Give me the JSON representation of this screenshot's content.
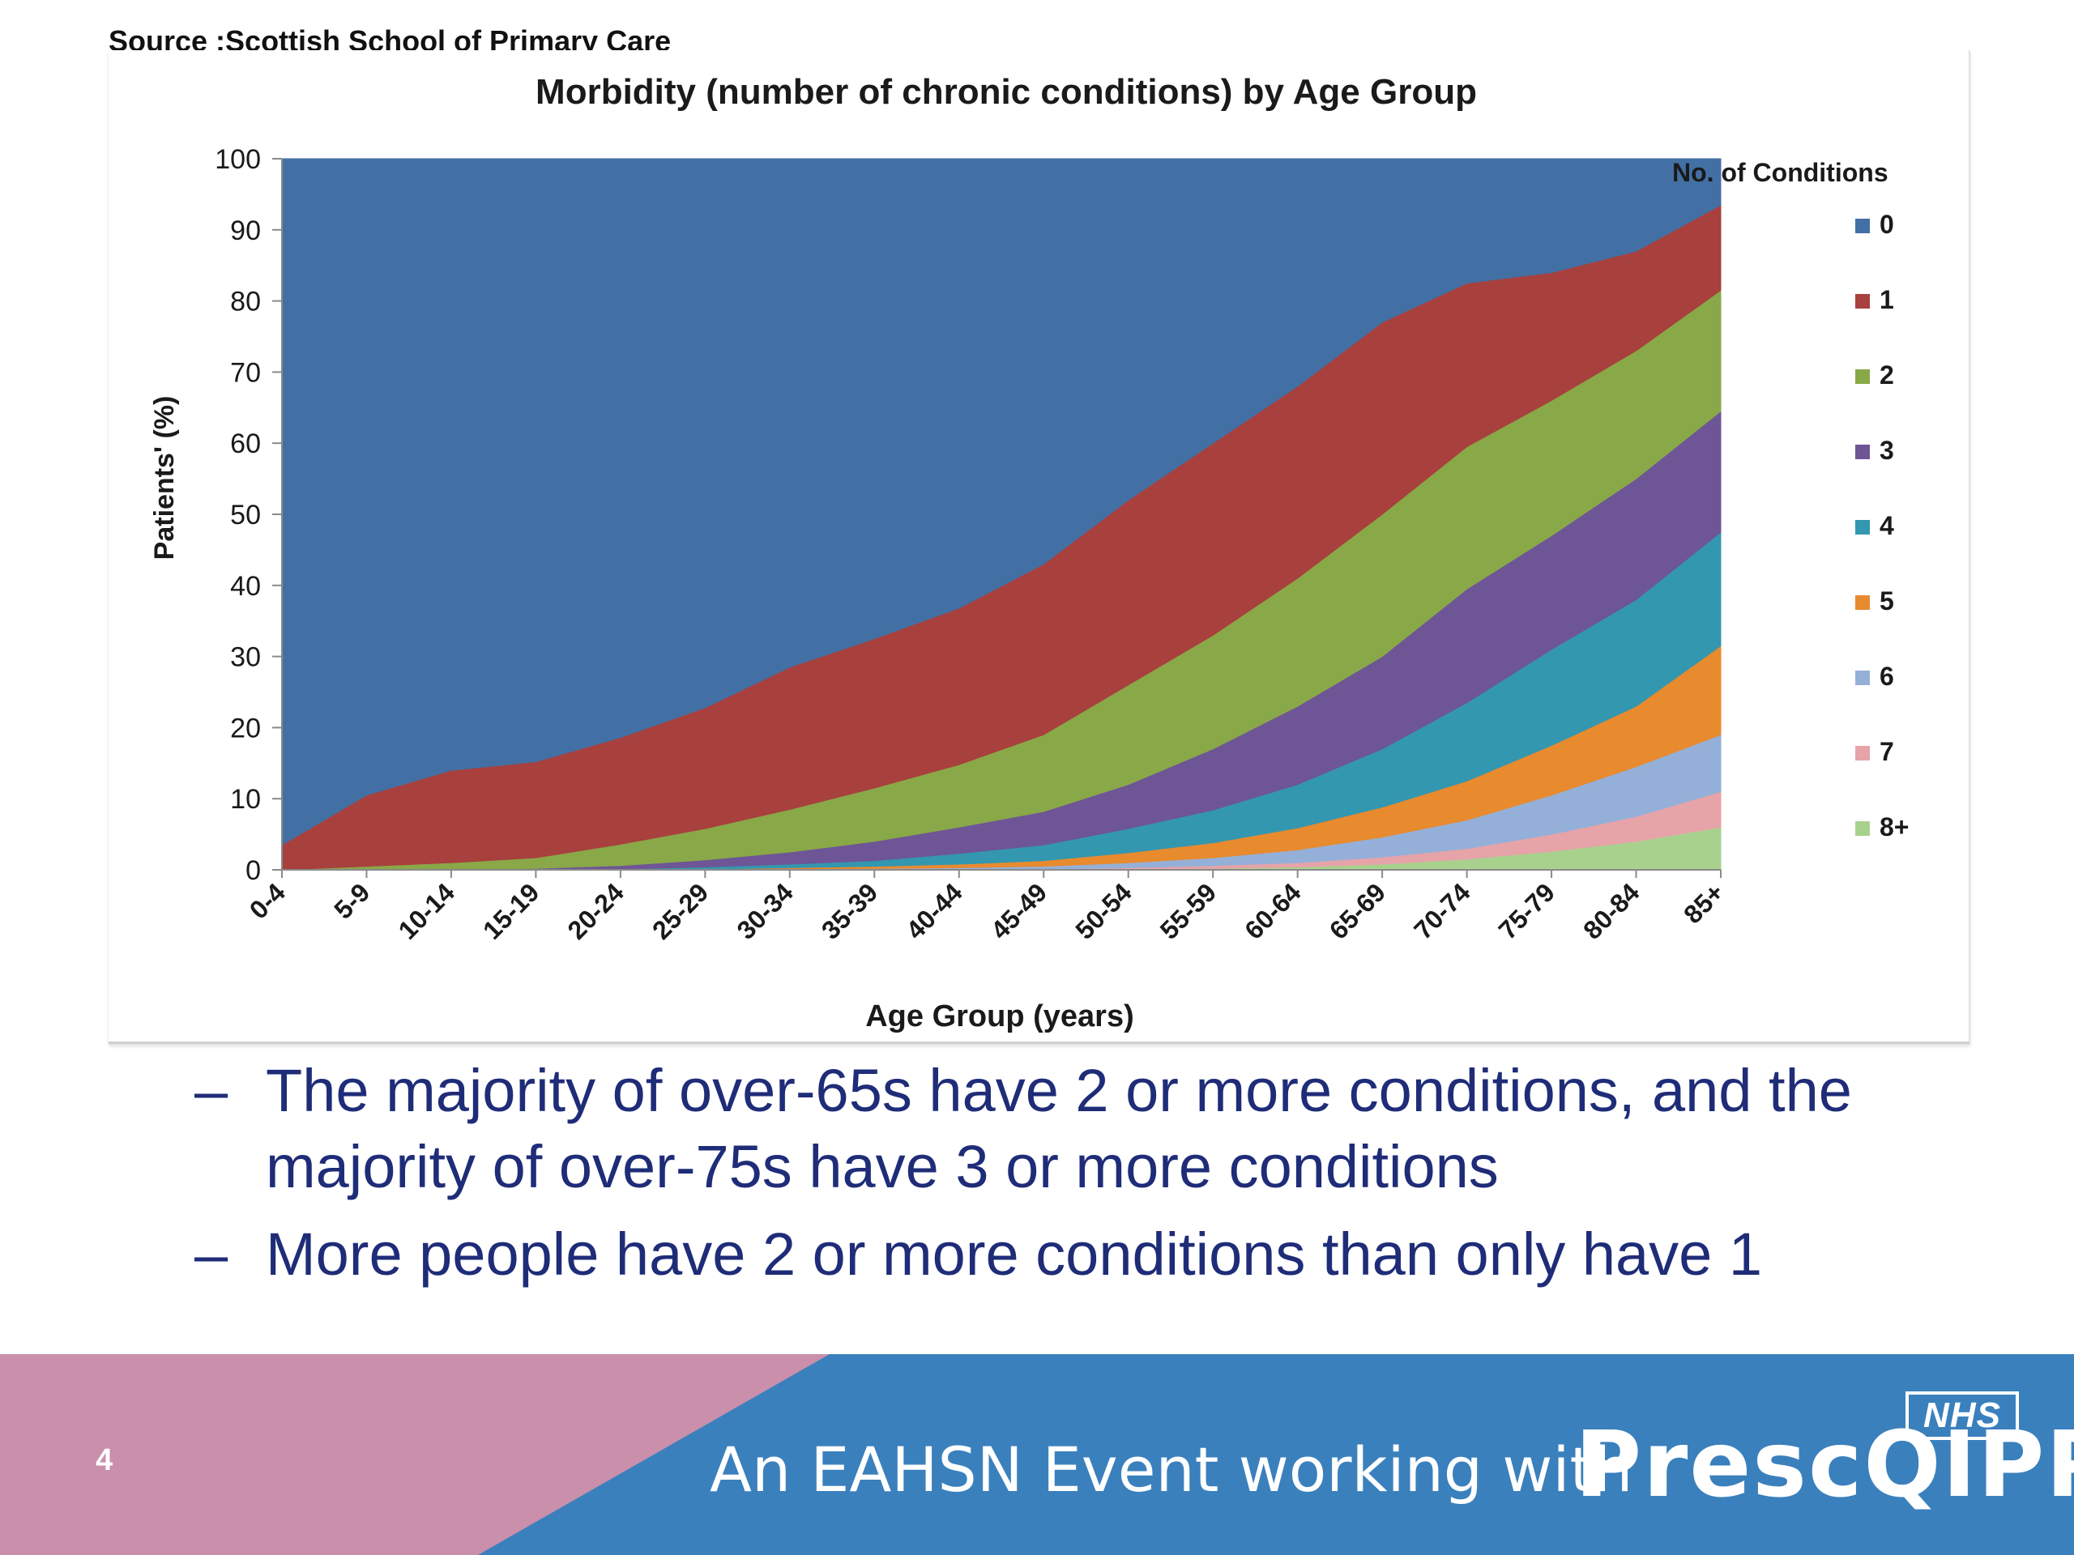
{
  "source": "Source :Scottish School of Primary Care",
  "chart_data": {
    "type": "area",
    "stacked": true,
    "title": "Morbidity (number of chronic conditions) by Age Group",
    "xlabel": "Age Group (years)",
    "ylabel": "Patients' (%)",
    "ylim": [
      0,
      100
    ],
    "yticks": [
      0,
      10,
      20,
      30,
      40,
      50,
      60,
      70,
      80,
      90,
      100
    ],
    "grid": false,
    "legend_title": "No. of Conditions",
    "legend_position": "right",
    "categories": [
      "0-4",
      "5-9",
      "10-14",
      "15-19",
      "20-24",
      "25-29",
      "30-34",
      "35-39",
      "40-44",
      "45-49",
      "50-54",
      "55-59",
      "60-64",
      "65-69",
      "70-74",
      "75-79",
      "80-84",
      "85+"
    ],
    "series": [
      {
        "name": "8+",
        "color": "#a9d18e",
        "values": [
          0,
          0,
          0,
          0,
          0,
          0,
          0,
          0,
          0,
          0,
          0.1,
          0.2,
          0.4,
          0.8,
          1.5,
          2.6,
          4.0,
          6.0
        ]
      },
      {
        "name": "7",
        "color": "#e6a3a8",
        "values": [
          0,
          0,
          0,
          0,
          0,
          0,
          0,
          0,
          0,
          0.1,
          0.2,
          0.4,
          0.6,
          1.0,
          1.5,
          2.4,
          3.5,
          5.0
        ]
      },
      {
        "name": "6",
        "color": "#94b0d8",
        "values": [
          0,
          0,
          0,
          0,
          0,
          0,
          0.1,
          0.2,
          0.3,
          0.4,
          0.7,
          1.1,
          1.8,
          2.8,
          4.0,
          5.5,
          7.0,
          8.0
        ]
      },
      {
        "name": "5",
        "color": "#e88a2e",
        "values": [
          0,
          0,
          0,
          0,
          0,
          0.1,
          0.2,
          0.3,
          0.5,
          0.8,
          1.4,
          2.1,
          3.1,
          4.2,
          5.5,
          7.0,
          8.5,
          12.5
        ]
      },
      {
        "name": "4",
        "color": "#3397b0",
        "values": [
          0,
          0,
          0,
          0,
          0.1,
          0.3,
          0.5,
          0.8,
          1.5,
          2.2,
          3.4,
          4.6,
          6.1,
          8.2,
          11.0,
          13.5,
          15.0,
          16.0
        ]
      },
      {
        "name": "3",
        "color": "#6e5596",
        "values": [
          0,
          0,
          0,
          0.2,
          0.5,
          1.0,
          1.7,
          2.7,
          3.7,
          4.7,
          6.2,
          8.6,
          11.0,
          13.0,
          16.0,
          16.0,
          17.0,
          17.0
        ]
      },
      {
        "name": "2",
        "color": "#89a848",
        "values": [
          0,
          0.5,
          1.0,
          1.5,
          3.0,
          4.4,
          6.0,
          7.5,
          8.8,
          10.8,
          14.0,
          16.0,
          18.0,
          20.0,
          20.0,
          19.0,
          18.0,
          17.0
        ]
      },
      {
        "name": "1",
        "color": "#a8403e",
        "values": [
          3.5,
          10.0,
          13.0,
          13.5,
          15.0,
          17.0,
          20.0,
          21.0,
          22.0,
          24.0,
          26.0,
          27.0,
          27.0,
          27.0,
          23.0,
          18.0,
          14.0,
          12.0
        ]
      },
      {
        "name": "0",
        "color": "#4370a4",
        "values": [
          96.5,
          89.5,
          86.0,
          84.8,
          81.4,
          77.2,
          71.5,
          67.5,
          63.2,
          57.0,
          48.0,
          40.0,
          32.0,
          23.0,
          17.5,
          16.0,
          13.0,
          6.5
        ]
      }
    ],
    "legend": [
      "0",
      "1",
      "2",
      "3",
      "4",
      "5",
      "6",
      "7",
      "8+"
    ]
  },
  "bullets": [
    {
      "dash": "–",
      "text": "The majority of over-65s have 2 or more conditions, and the majority of over-75s have 3 or more conditions"
    },
    {
      "dash": "–",
      "text": "More people have 2 or more conditions than only have 1"
    }
  ],
  "footer": {
    "page_number": "4",
    "text": "An EAHSN Event working with",
    "logo_text": "PrescQIPP",
    "nhs_badge": "NHS",
    "colors": {
      "pink": "#c98fab",
      "blue": "#3a80bd"
    }
  }
}
